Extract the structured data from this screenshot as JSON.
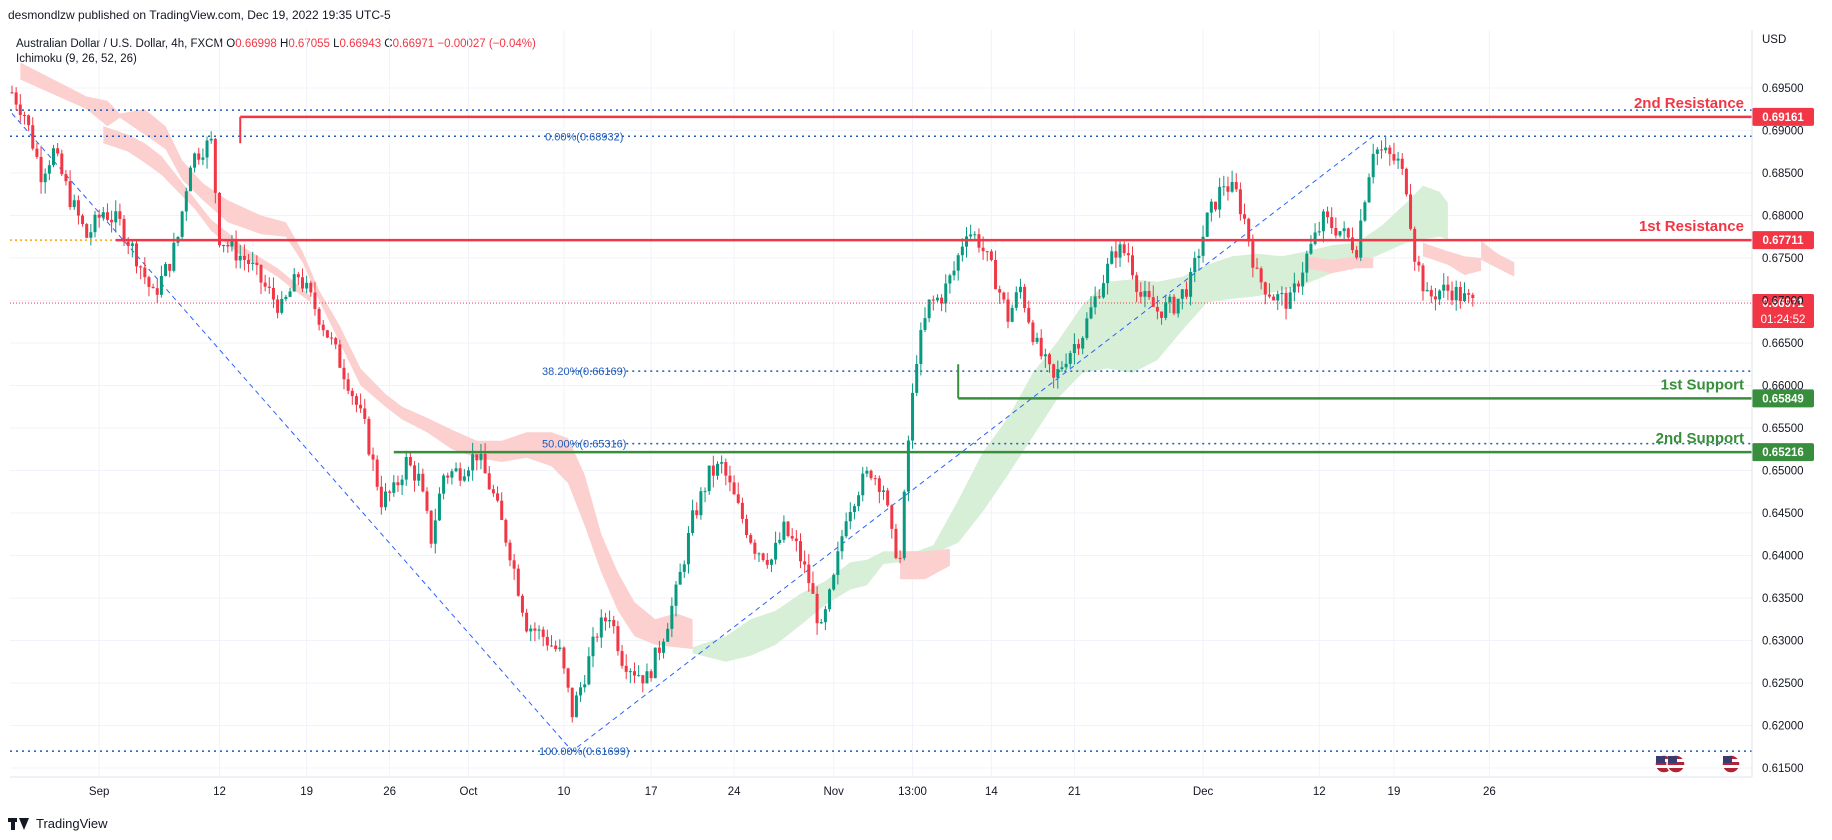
{
  "publish_line": "desmondlzw published on TradingView.com, Dec 19, 2022 19:35 UTC-5",
  "header": {
    "symbol": "Australian Dollar / U.S. Dollar, 4h, FXCM",
    "o_label": "O",
    "o_value": "0.66998",
    "h_label": "H",
    "h_value": "0.67055",
    "l_label": "L",
    "l_value": "0.66943",
    "c_label": "C",
    "c_value": "0.66971",
    "change": "−0.00027 (−0.04%)"
  },
  "indicator": "Ichimoku (9, 26, 52, 26)",
  "currency": "USD",
  "footer": {
    "brand": "TradingView"
  },
  "colors": {
    "up": "#089981",
    "down": "#f23645",
    "resistance": "#f23645",
    "support": "#388e3c",
    "fib": "#1e5bb8",
    "cloud_bear": "#fbd0cf",
    "cloud_bull": "#d7efd7",
    "grid": "#f0f3fa"
  },
  "chart_data": {
    "type": "candlestick",
    "y_axis": {
      "min": 0.6145,
      "max": 0.6983,
      "ticks": [
        "0.69500",
        "0.69000",
        "0.68500",
        "0.68000",
        "0.67500",
        "0.67000",
        "0.66500",
        "0.66000",
        "0.65500",
        "0.65000",
        "0.64500",
        "0.64000",
        "0.63500",
        "0.63000",
        "0.62500",
        "0.62000",
        "0.61500"
      ]
    },
    "x_axis": {
      "labels": [
        "Sep",
        "12",
        "19",
        "26",
        "Oct",
        "10",
        "17",
        "24",
        "Nov",
        "13:00",
        "14",
        "21",
        "Dec",
        "12",
        "19",
        "26"
      ]
    },
    "levels": [
      {
        "name": "2nd Resistance",
        "value": "0.69161",
        "kind": "resistance"
      },
      {
        "name": "1st Resistance",
        "value": "0.67711",
        "kind": "resistance"
      },
      {
        "name": "1st Support",
        "value": "0.65849",
        "kind": "support"
      },
      {
        "name": "2nd Support",
        "value": "0.65216",
        "kind": "support"
      }
    ],
    "fib_levels": [
      {
        "label": "0.00%(0.68932)",
        "value": 0.68932
      },
      {
        "label": "38.20%(0.66169)",
        "value": 0.66169
      },
      {
        "label": "50.00%(0.65316)",
        "value": 0.65316
      },
      {
        "label": "100.00%(0.61699)",
        "value": 0.61699
      }
    ],
    "last_price": {
      "value": "0.66971",
      "countdown": "01:24:52"
    },
    "price_path": [
      [
        0,
        0.6945
      ],
      [
        3,
        0.692
      ],
      [
        7,
        0.685
      ],
      [
        10,
        0.6875
      ],
      [
        14,
        0.682
      ],
      [
        18,
        0.6775
      ],
      [
        22,
        0.6805
      ],
      [
        26,
        0.679
      ],
      [
        30,
        0.6752
      ],
      [
        34,
        0.6705
      ],
      [
        38,
        0.6745
      ],
      [
        40,
        0.6775
      ],
      [
        43,
        0.6865
      ],
      [
        46,
        0.688
      ],
      [
        48,
        0.6885
      ],
      [
        50,
        0.6775
      ],
      [
        53,
        0.676
      ],
      [
        57,
        0.6745
      ],
      [
        61,
        0.6715
      ],
      [
        65,
        0.669
      ],
      [
        69,
        0.673
      ],
      [
        73,
        0.6692
      ],
      [
        77,
        0.665
      ],
      [
        81,
        0.6605
      ],
      [
        85,
        0.655
      ],
      [
        89,
        0.6465
      ],
      [
        92,
        0.6475
      ],
      [
        95,
        0.651
      ],
      [
        98,
        0.649
      ],
      [
        101,
        0.642
      ],
      [
        104,
        0.6495
      ],
      [
        108,
        0.65
      ],
      [
        112,
        0.652
      ],
      [
        116,
        0.647
      ],
      [
        120,
        0.6405
      ],
      [
        124,
        0.632
      ],
      [
        128,
        0.6305
      ],
      [
        132,
        0.6285
      ],
      [
        135,
        0.6215
      ],
      [
        138,
        0.626
      ],
      [
        141,
        0.631
      ],
      [
        144,
        0.6332
      ],
      [
        147,
        0.628
      ],
      [
        150,
        0.6265
      ],
      [
        153,
        0.6255
      ],
      [
        156,
        0.6292
      ],
      [
        160,
        0.6355
      ],
      [
        164,
        0.6442
      ],
      [
        168,
        0.6495
      ],
      [
        171,
        0.6505
      ],
      [
        175,
        0.6455
      ],
      [
        179,
        0.641
      ],
      [
        183,
        0.6395
      ],
      [
        186,
        0.643
      ],
      [
        189,
        0.641
      ],
      [
        192,
        0.637
      ],
      [
        195,
        0.631
      ],
      [
        198,
        0.637
      ],
      [
        201,
        0.645
      ],
      [
        204,
        0.648
      ],
      [
        207,
        0.65
      ],
      [
        210,
        0.648
      ],
      [
        212,
        0.642
      ],
      [
        214,
        0.6395
      ],
      [
        216,
        0.6535
      ],
      [
        218,
        0.6635
      ],
      [
        221,
        0.6695
      ],
      [
        224,
        0.6705
      ],
      [
        227,
        0.6735
      ],
      [
        230,
        0.6785
      ],
      [
        233,
        0.677
      ],
      [
        237,
        0.6725
      ],
      [
        240,
        0.668
      ],
      [
        243,
        0.6715
      ],
      [
        247,
        0.6645
      ],
      [
        251,
        0.6605
      ],
      [
        254,
        0.6635
      ],
      [
        258,
        0.6662
      ],
      [
        262,
        0.6715
      ],
      [
        266,
        0.676
      ],
      [
        269,
        0.6755
      ],
      [
        272,
        0.6705
      ],
      [
        276,
        0.6688
      ],
      [
        280,
        0.6695
      ],
      [
        284,
        0.6722
      ],
      [
        288,
        0.6795
      ],
      [
        292,
        0.6838
      ],
      [
        295,
        0.6825
      ],
      [
        297,
        0.6795
      ],
      [
        300,
        0.6728
      ],
      [
        304,
        0.6705
      ],
      [
        308,
        0.6698
      ],
      [
        312,
        0.6752
      ],
      [
        316,
        0.6795
      ],
      [
        320,
        0.6782
      ],
      [
        324,
        0.6762
      ],
      [
        326,
        0.6825
      ],
      [
        328,
        0.688
      ],
      [
        331,
        0.6872
      ],
      [
        334,
        0.6862
      ],
      [
        336,
        0.6835
      ],
      [
        338,
        0.6755
      ],
      [
        341,
        0.6702
      ],
      [
        344,
        0.6712
      ],
      [
        347,
        0.6712
      ],
      [
        350,
        0.6702
      ],
      [
        352,
        0.6697
      ]
    ],
    "fib_diagonal": [
      [
        0,
        0.692
      ],
      [
        135,
        0.61699
      ],
      [
        328,
        0.68932
      ]
    ],
    "ichimoku_cloud": [
      {
        "kind": "bear",
        "top": [
          [
            2,
            0.698
          ],
          [
            18,
            0.694
          ],
          [
            23,
            0.6935
          ],
          [
            26,
            0.692
          ],
          [
            32,
            0.6925
          ],
          [
            37,
            0.6905
          ],
          [
            41,
            0.6865
          ],
          [
            46,
            0.6838
          ],
          [
            52,
            0.6818
          ],
          [
            60,
            0.68
          ],
          [
            66,
            0.6792
          ],
          [
            70,
            0.6758
          ],
          [
            74,
            0.6712
          ],
          [
            79,
            0.667
          ],
          [
            84,
            0.662
          ],
          [
            90,
            0.659
          ],
          [
            94,
            0.6575
          ],
          [
            100,
            0.6562
          ],
          [
            106,
            0.6548
          ],
          [
            112,
            0.6535
          ],
          [
            118,
            0.6535
          ],
          [
            124,
            0.6545
          ],
          [
            130,
            0.6545
          ],
          [
            134,
            0.6538
          ],
          [
            138,
            0.6495
          ],
          [
            142,
            0.6425
          ],
          [
            146,
            0.638
          ],
          [
            150,
            0.6345
          ],
          [
            155,
            0.6325
          ],
          [
            160,
            0.6332
          ],
          [
            164,
            0.6325
          ]
        ],
        "bottom": [
          [
            2,
            0.696
          ],
          [
            18,
            0.6925
          ],
          [
            23,
            0.6905
          ],
          [
            26,
            0.6915
          ],
          [
            32,
            0.6895
          ],
          [
            37,
            0.6878
          ],
          [
            41,
            0.6842
          ],
          [
            46,
            0.6818
          ],
          [
            52,
            0.6792
          ],
          [
            60,
            0.6778
          ],
          [
            66,
            0.6775
          ],
          [
            70,
            0.6745
          ],
          [
            74,
            0.67
          ],
          [
            79,
            0.665
          ],
          [
            84,
            0.66
          ],
          [
            90,
            0.6575
          ],
          [
            94,
            0.656
          ],
          [
            100,
            0.6545
          ],
          [
            106,
            0.6525
          ],
          [
            112,
            0.6515
          ],
          [
            118,
            0.651
          ],
          [
            124,
            0.6515
          ],
          [
            130,
            0.6505
          ],
          [
            134,
            0.6485
          ],
          [
            138,
            0.6435
          ],
          [
            142,
            0.638
          ],
          [
            146,
            0.6335
          ],
          [
            150,
            0.6305
          ],
          [
            155,
            0.6295
          ],
          [
            160,
            0.6292
          ],
          [
            164,
            0.629
          ]
        ]
      },
      {
        "kind": "bull",
        "top": [
          [
            164,
            0.6292
          ],
          [
            172,
            0.6305
          ],
          [
            178,
            0.6325
          ],
          [
            184,
            0.6335
          ],
          [
            190,
            0.6355
          ],
          [
            196,
            0.637
          ],
          [
            202,
            0.6392
          ],
          [
            206,
            0.6395
          ],
          [
            210,
            0.6405
          ],
          [
            214,
            0.6405
          ],
          [
            218,
            0.6405
          ],
          [
            222,
            0.6412
          ],
          [
            228,
            0.6465
          ],
          [
            234,
            0.6522
          ],
          [
            240,
            0.6562
          ],
          [
            246,
            0.6615
          ],
          [
            252,
            0.6652
          ],
          [
            258,
            0.6695
          ],
          [
            264,
            0.6722
          ],
          [
            270,
            0.6725
          ],
          [
            276,
            0.6722
          ],
          [
            282,
            0.6728
          ],
          [
            288,
            0.6742
          ],
          [
            294,
            0.6752
          ],
          [
            300,
            0.6755
          ],
          [
            306,
            0.6752
          ],
          [
            312,
            0.6758
          ],
          [
            318,
            0.6765
          ],
          [
            324,
            0.6768
          ],
          [
            330,
            0.6788
          ],
          [
            336,
            0.6815
          ],
          [
            340,
            0.6835
          ],
          [
            344,
            0.6828
          ],
          [
            346,
            0.6815
          ]
        ],
        "bottom": [
          [
            164,
            0.6285
          ],
          [
            172,
            0.6275
          ],
          [
            178,
            0.6282
          ],
          [
            184,
            0.6295
          ],
          [
            190,
            0.6318
          ],
          [
            196,
            0.6342
          ],
          [
            202,
            0.636
          ],
          [
            206,
            0.6365
          ],
          [
            210,
            0.639
          ],
          [
            214,
            0.6392
          ],
          [
            218,
            0.6398
          ],
          [
            222,
            0.6402
          ],
          [
            228,
            0.6415
          ],
          [
            234,
            0.6452
          ],
          [
            240,
            0.6495
          ],
          [
            246,
            0.654
          ],
          [
            252,
            0.6585
          ],
          [
            258,
            0.6615
          ],
          [
            264,
            0.662
          ],
          [
            270,
            0.6615
          ],
          [
            276,
            0.663
          ],
          [
            282,
            0.6665
          ],
          [
            288,
            0.6698
          ],
          [
            294,
            0.6702
          ],
          [
            300,
            0.6705
          ],
          [
            306,
            0.6712
          ],
          [
            312,
            0.672
          ],
          [
            318,
            0.6732
          ],
          [
            324,
            0.6742
          ],
          [
            330,
            0.6755
          ],
          [
            336,
            0.6768
          ],
          [
            340,
            0.6772
          ],
          [
            344,
            0.6775
          ],
          [
            346,
            0.6772
          ]
        ]
      },
      {
        "kind": "bear",
        "top": [
          [
            22,
            0.6905
          ],
          [
            28,
            0.6895
          ],
          [
            32,
            0.6885
          ],
          [
            36,
            0.687
          ],
          [
            40,
            0.6845
          ],
          [
            44,
            0.682
          ],
          [
            48,
            0.6795
          ],
          [
            52,
            0.678
          ],
          [
            56,
            0.6762
          ],
          [
            60,
            0.675
          ],
          [
            64,
            0.6738
          ],
          [
            68,
            0.6722
          ],
          [
            72,
            0.6705
          ]
        ],
        "bottom": [
          [
            22,
            0.6885
          ],
          [
            28,
            0.6875
          ],
          [
            32,
            0.6862
          ],
          [
            36,
            0.6848
          ],
          [
            40,
            0.6828
          ],
          [
            44,
            0.6808
          ],
          [
            48,
            0.6782
          ],
          [
            52,
            0.6765
          ],
          [
            56,
            0.675
          ],
          [
            60,
            0.674
          ],
          [
            64,
            0.6728
          ],
          [
            68,
            0.6712
          ],
          [
            72,
            0.6698
          ]
        ]
      },
      {
        "kind": "bear",
        "top": [
          [
            214,
            0.6405
          ],
          [
            220,
            0.6405
          ],
          [
            226,
            0.6408
          ]
        ],
        "bottom": [
          [
            214,
            0.6372
          ],
          [
            220,
            0.6372
          ],
          [
            226,
            0.6388
          ]
        ]
      },
      {
        "kind": "bear",
        "top": [
          [
            312,
            0.6752
          ],
          [
            318,
            0.6748
          ],
          [
            324,
            0.6752
          ],
          [
            328,
            0.675
          ]
        ],
        "bottom": [
          [
            312,
            0.6738
          ],
          [
            318,
            0.6732
          ],
          [
            324,
            0.6738
          ],
          [
            328,
            0.6738
          ]
        ]
      },
      {
        "kind": "bear",
        "top": [
          [
            340,
            0.6768
          ],
          [
            346,
            0.6758
          ],
          [
            350,
            0.6752
          ],
          [
            354,
            0.675
          ]
        ],
        "bottom": [
          [
            340,
            0.6752
          ],
          [
            346,
            0.6742
          ],
          [
            350,
            0.673
          ],
          [
            354,
            0.6735
          ]
        ]
      },
      {
        "kind": "bear",
        "top": [
          [
            354,
            0.677
          ],
          [
            358,
            0.6755
          ],
          [
            362,
            0.6745
          ]
        ],
        "bottom": [
          [
            354,
            0.6748
          ],
          [
            358,
            0.6738
          ],
          [
            362,
            0.6728
          ]
        ]
      }
    ],
    "ichimoku_green_tail": [
      [
        338,
        0.6825
      ],
      [
        342,
        0.683
      ],
      [
        346,
        0.684
      ],
      [
        349,
        0.683
      ],
      [
        351,
        0.6818
      ]
    ],
    "fx_axis_labels": [
      "Sep",
      "12",
      "19",
      "26",
      "Oct",
      "10",
      "17",
      "24",
      "Nov",
      "13:00",
      "14",
      "21",
      "Dec",
      "12",
      "19",
      "26"
    ]
  }
}
